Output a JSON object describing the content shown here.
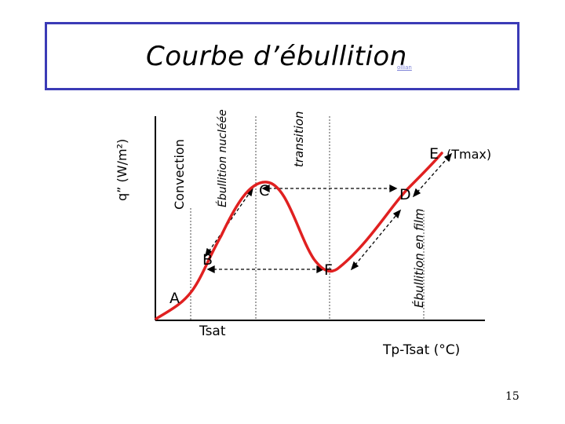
{
  "slide": {
    "title": "Courbe d’ébullition",
    "title_sub": "ollian",
    "page_number": "15"
  },
  "axes": {
    "ylabel": "q” (W/m²)",
    "xlabel": "Tp-Tsat (°C)",
    "tsat_label": "Tsat"
  },
  "regions": {
    "convection": "Convection",
    "nucleate": "Ébullition nucléée",
    "transition": "transition",
    "film": "Ébullition en film"
  },
  "points": {
    "A": "A",
    "B": "B",
    "C": "C",
    "D": "D",
    "E": "E",
    "E_note": "(Tmax)",
    "F": "F"
  },
  "colors": {
    "curve": "#e02020",
    "frame": "#3b3bb6",
    "axis": "#000000"
  }
}
